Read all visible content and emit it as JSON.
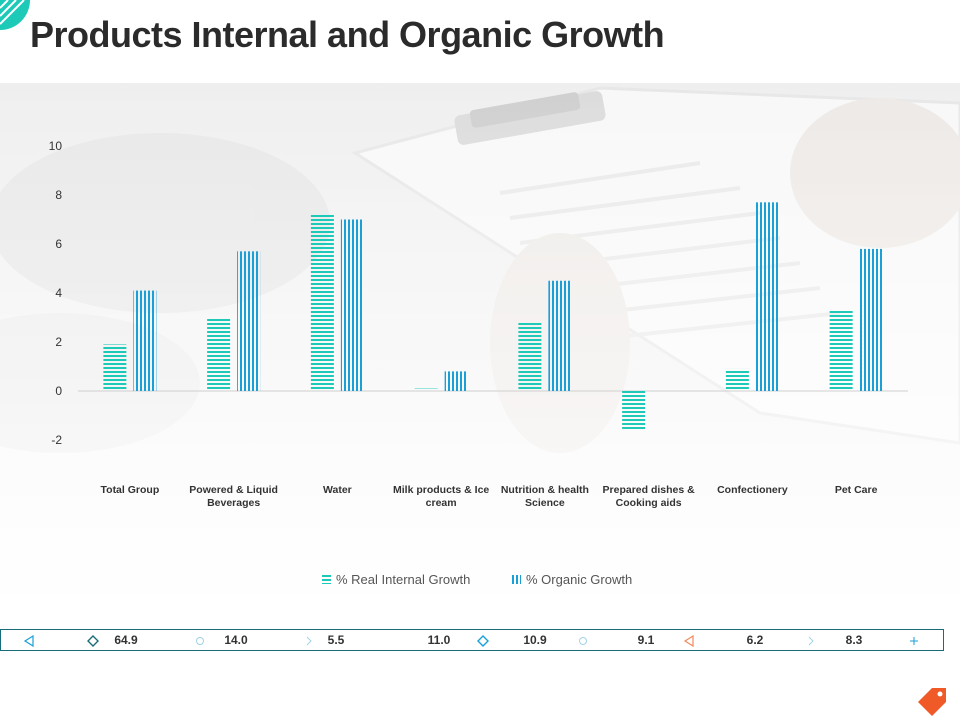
{
  "page": {
    "title": "Products Internal and Organic Growth"
  },
  "colors": {
    "real": "#1dc9b7",
    "organic": "#1a9fd6",
    "footer_border": "#1a6c7a",
    "tag": "#f05a28"
  },
  "chart_data": {
    "type": "bar",
    "title": "",
    "xlabel": "",
    "ylabel": "",
    "ylim": [
      -2,
      10
    ],
    "yticks": [
      -2,
      0,
      2,
      4,
      6,
      8,
      10
    ],
    "ytick_labels": [
      "-2",
      "0",
      "2",
      "4",
      "6",
      "8",
      "10"
    ],
    "categories": [
      [
        "Total Group"
      ],
      [
        "Powered & Liquid",
        "Beverages"
      ],
      [
        "Water"
      ],
      [
        "Milk products & Ice",
        "cream"
      ],
      [
        "Nutrition & health",
        "Science"
      ],
      [
        "Prepared dishes &",
        "Cooking aids"
      ],
      [
        "Confectionery"
      ],
      [
        "Pet Care"
      ]
    ],
    "series": [
      {
        "name": "% Real Internal Growth",
        "values": [
          1.9,
          3.0,
          7.2,
          0.1,
          2.8,
          -1.6,
          0.9,
          3.3
        ]
      },
      {
        "name": "% Organic Growth",
        "values": [
          4.1,
          5.7,
          7.0,
          0.8,
          4.5,
          0.0,
          7.7,
          5.8
        ]
      }
    ],
    "legend_position": "bottom"
  },
  "footer": {
    "values": [
      "64.9",
      "14.0",
      "5.5",
      "11.0",
      "10.9",
      "9.1",
      "6.2",
      "8.3"
    ],
    "icons": [
      "triangle-left-icon",
      "diamond-icon",
      "circle-icon",
      "chevron-right-icon",
      "diamond-icon",
      "circle-icon",
      "triangle-left-icon",
      "chevron-right-icon",
      "plus-icon"
    ]
  }
}
